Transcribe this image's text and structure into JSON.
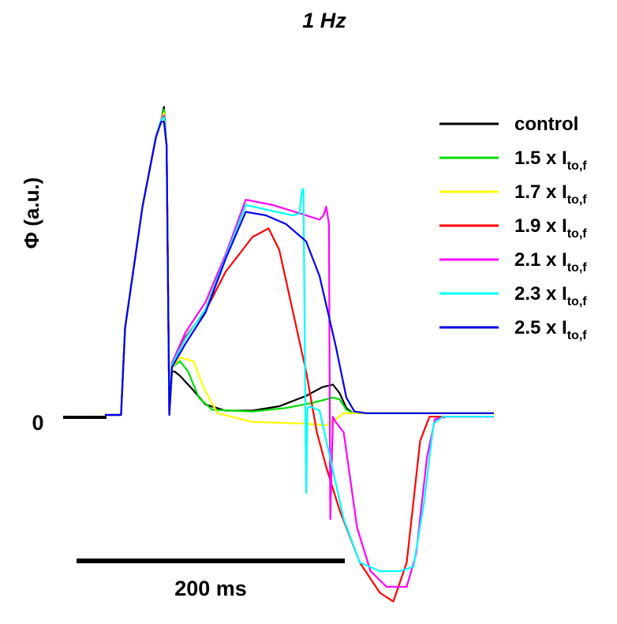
{
  "chart_data": {
    "type": "line",
    "title": "1 Hz",
    "ylabel": "Φ (a.u.)",
    "zero_label": "0",
    "scale_bar": {
      "label": "200 ms",
      "duration_ms": 200
    },
    "x_unit": "ms",
    "y_unit": "a.u.",
    "legend_position": "top-right",
    "series": [
      {
        "name": "control",
        "label_main": "control",
        "label_sub": "",
        "color": "#000000",
        "points": [
          [
            0,
            0
          ],
          [
            12,
            0
          ],
          [
            15,
            1.0
          ],
          [
            28,
            2.4
          ],
          [
            38,
            3.2
          ],
          [
            42,
            3.4
          ],
          [
            44,
            3.55
          ],
          [
            46,
            3.1
          ],
          [
            48,
            0
          ],
          [
            50,
            0.5
          ],
          [
            52,
            0.5
          ],
          [
            56,
            0.45
          ],
          [
            65,
            0.3
          ],
          [
            75,
            0.12
          ],
          [
            90,
            0.05
          ],
          [
            110,
            0.05
          ],
          [
            130,
            0.1
          ],
          [
            150,
            0.22
          ],
          [
            162,
            0.32
          ],
          [
            170,
            0.35
          ],
          [
            175,
            0.25
          ],
          [
            180,
            0.08
          ],
          [
            185,
            0.02
          ],
          [
            240,
            0.02
          ],
          [
            290,
            0.02
          ]
        ]
      },
      {
        "name": "1.5 x Ito,f",
        "label_main": "1.5 x I",
        "label_sub": "to,f",
        "color": "#00dd00",
        "points": [
          [
            0,
            0
          ],
          [
            12,
            0
          ],
          [
            15,
            1.0
          ],
          [
            28,
            2.4
          ],
          [
            38,
            3.2
          ],
          [
            42,
            3.4
          ],
          [
            44,
            3.52
          ],
          [
            46,
            3.1
          ],
          [
            48,
            0
          ],
          [
            50,
            0.55
          ],
          [
            56,
            0.62
          ],
          [
            62,
            0.5
          ],
          [
            70,
            0.2
          ],
          [
            80,
            0.06
          ],
          [
            110,
            0.04
          ],
          [
            135,
            0.08
          ],
          [
            155,
            0.14
          ],
          [
            170,
            0.2
          ],
          [
            175,
            0.18
          ],
          [
            180,
            0.06
          ],
          [
            185,
            0.02
          ],
          [
            290,
            0.02
          ]
        ]
      },
      {
        "name": "1.7 x Ito,f",
        "label_main": "1.7 x I",
        "label_sub": "to,f",
        "color": "#ffff00",
        "points": [
          [
            0,
            0
          ],
          [
            12,
            0
          ],
          [
            15,
            1.0
          ],
          [
            28,
            2.4
          ],
          [
            38,
            3.2
          ],
          [
            42,
            3.4
          ],
          [
            44,
            3.48
          ],
          [
            46,
            3.1
          ],
          [
            48,
            0
          ],
          [
            50,
            0.55
          ],
          [
            56,
            0.66
          ],
          [
            66,
            0.62
          ],
          [
            74,
            0.3
          ],
          [
            84,
            0.02
          ],
          [
            110,
            -0.08
          ],
          [
            150,
            -0.1
          ],
          [
            165,
            -0.12
          ],
          [
            172,
            -0.05
          ],
          [
            178,
            0.02
          ],
          [
            185,
            0.02
          ],
          [
            290,
            0.02
          ]
        ]
      },
      {
        "name": "1.9 x Ito,f",
        "label_main": "1.9 x I",
        "label_sub": "to,f",
        "color": "#ff0000",
        "points": [
          [
            0,
            0
          ],
          [
            12,
            0
          ],
          [
            15,
            1.0
          ],
          [
            28,
            2.4
          ],
          [
            38,
            3.2
          ],
          [
            42,
            3.4
          ],
          [
            44,
            3.45
          ],
          [
            46,
            3.1
          ],
          [
            48,
            0
          ],
          [
            50,
            0.6
          ],
          [
            60,
            0.9
          ],
          [
            75,
            1.2
          ],
          [
            90,
            1.65
          ],
          [
            110,
            2.05
          ],
          [
            122,
            2.15
          ],
          [
            130,
            1.9
          ],
          [
            140,
            1.2
          ],
          [
            150,
            0.5
          ],
          [
            158,
            -0.2
          ],
          [
            165,
            -0.6
          ],
          [
            175,
            -1.1
          ],
          [
            190,
            -1.7
          ],
          [
            205,
            -2.05
          ],
          [
            215,
            -2.15
          ],
          [
            225,
            -1.7
          ],
          [
            235,
            -0.3
          ],
          [
            242,
            -0.02
          ],
          [
            255,
            -0.02
          ],
          [
            290,
            -0.02
          ]
        ]
      },
      {
        "name": "2.1 x Ito,f",
        "label_main": "2.1 x I",
        "label_sub": "to,f",
        "color": "#ff00ff",
        "points": [
          [
            0,
            0
          ],
          [
            12,
            0
          ],
          [
            15,
            1.0
          ],
          [
            28,
            2.4
          ],
          [
            38,
            3.2
          ],
          [
            42,
            3.4
          ],
          [
            44,
            3.45
          ],
          [
            46,
            3.1
          ],
          [
            48,
            0
          ],
          [
            50,
            0.6
          ],
          [
            60,
            0.95
          ],
          [
            75,
            1.3
          ],
          [
            90,
            1.85
          ],
          [
            105,
            2.48
          ],
          [
            125,
            2.42
          ],
          [
            150,
            2.3
          ],
          [
            160,
            2.25
          ],
          [
            163,
            2.3
          ],
          [
            165,
            2.4
          ],
          [
            167,
            2.2
          ],
          [
            168,
            -1.2
          ],
          [
            170,
            -0.02
          ],
          [
            172,
            -0.08
          ],
          [
            178,
            -0.2
          ],
          [
            188,
            -1.3
          ],
          [
            198,
            -1.8
          ],
          [
            210,
            -1.98
          ],
          [
            225,
            -1.98
          ],
          [
            232,
            -1.6
          ],
          [
            240,
            -0.5
          ],
          [
            246,
            -0.05
          ],
          [
            255,
            -0.02
          ],
          [
            290,
            -0.02
          ]
        ]
      },
      {
        "name": "2.3 x Ito,f",
        "label_main": "2.3 x I",
        "label_sub": "to,f",
        "color": "#00ffff",
        "points": [
          [
            0,
            0
          ],
          [
            12,
            0
          ],
          [
            15,
            1.0
          ],
          [
            28,
            2.4
          ],
          [
            38,
            3.2
          ],
          [
            42,
            3.4
          ],
          [
            44,
            3.43
          ],
          [
            46,
            3.1
          ],
          [
            48,
            0
          ],
          [
            50,
            0.58
          ],
          [
            60,
            0.88
          ],
          [
            75,
            1.22
          ],
          [
            90,
            1.82
          ],
          [
            105,
            2.42
          ],
          [
            125,
            2.35
          ],
          [
            140,
            2.3
          ],
          [
            145,
            2.32
          ],
          [
            147,
            2.6
          ],
          [
            148,
            2.6
          ],
          [
            150,
            -0.9
          ],
          [
            151,
            0.08
          ],
          [
            153,
            0.1
          ],
          [
            160,
            0.05
          ],
          [
            168,
            -0.5
          ],
          [
            178,
            -1.2
          ],
          [
            190,
            -1.7
          ],
          [
            205,
            -1.8
          ],
          [
            220,
            -1.8
          ],
          [
            230,
            -1.75
          ],
          [
            238,
            -1.0
          ],
          [
            245,
            -0.1
          ],
          [
            252,
            -0.02
          ],
          [
            290,
            -0.02
          ]
        ]
      },
      {
        "name": "2.5 x Ito,f",
        "label_main": "2.5 x I",
        "label_sub": "to,f",
        "color": "#0000ee",
        "points": [
          [
            0,
            0
          ],
          [
            12,
            0
          ],
          [
            15,
            1.0
          ],
          [
            28,
            2.4
          ],
          [
            38,
            3.2
          ],
          [
            42,
            3.38
          ],
          [
            44,
            3.38
          ],
          [
            46,
            3.1
          ],
          [
            48,
            0
          ],
          [
            50,
            0.55
          ],
          [
            60,
            0.82
          ],
          [
            75,
            1.18
          ],
          [
            90,
            1.8
          ],
          [
            105,
            2.34
          ],
          [
            120,
            2.3
          ],
          [
            135,
            2.2
          ],
          [
            150,
            2.0
          ],
          [
            160,
            1.6
          ],
          [
            172,
            0.8
          ],
          [
            180,
            0.2
          ],
          [
            186,
            0.04
          ],
          [
            195,
            0.02
          ],
          [
            290,
            0.02
          ]
        ]
      }
    ]
  }
}
